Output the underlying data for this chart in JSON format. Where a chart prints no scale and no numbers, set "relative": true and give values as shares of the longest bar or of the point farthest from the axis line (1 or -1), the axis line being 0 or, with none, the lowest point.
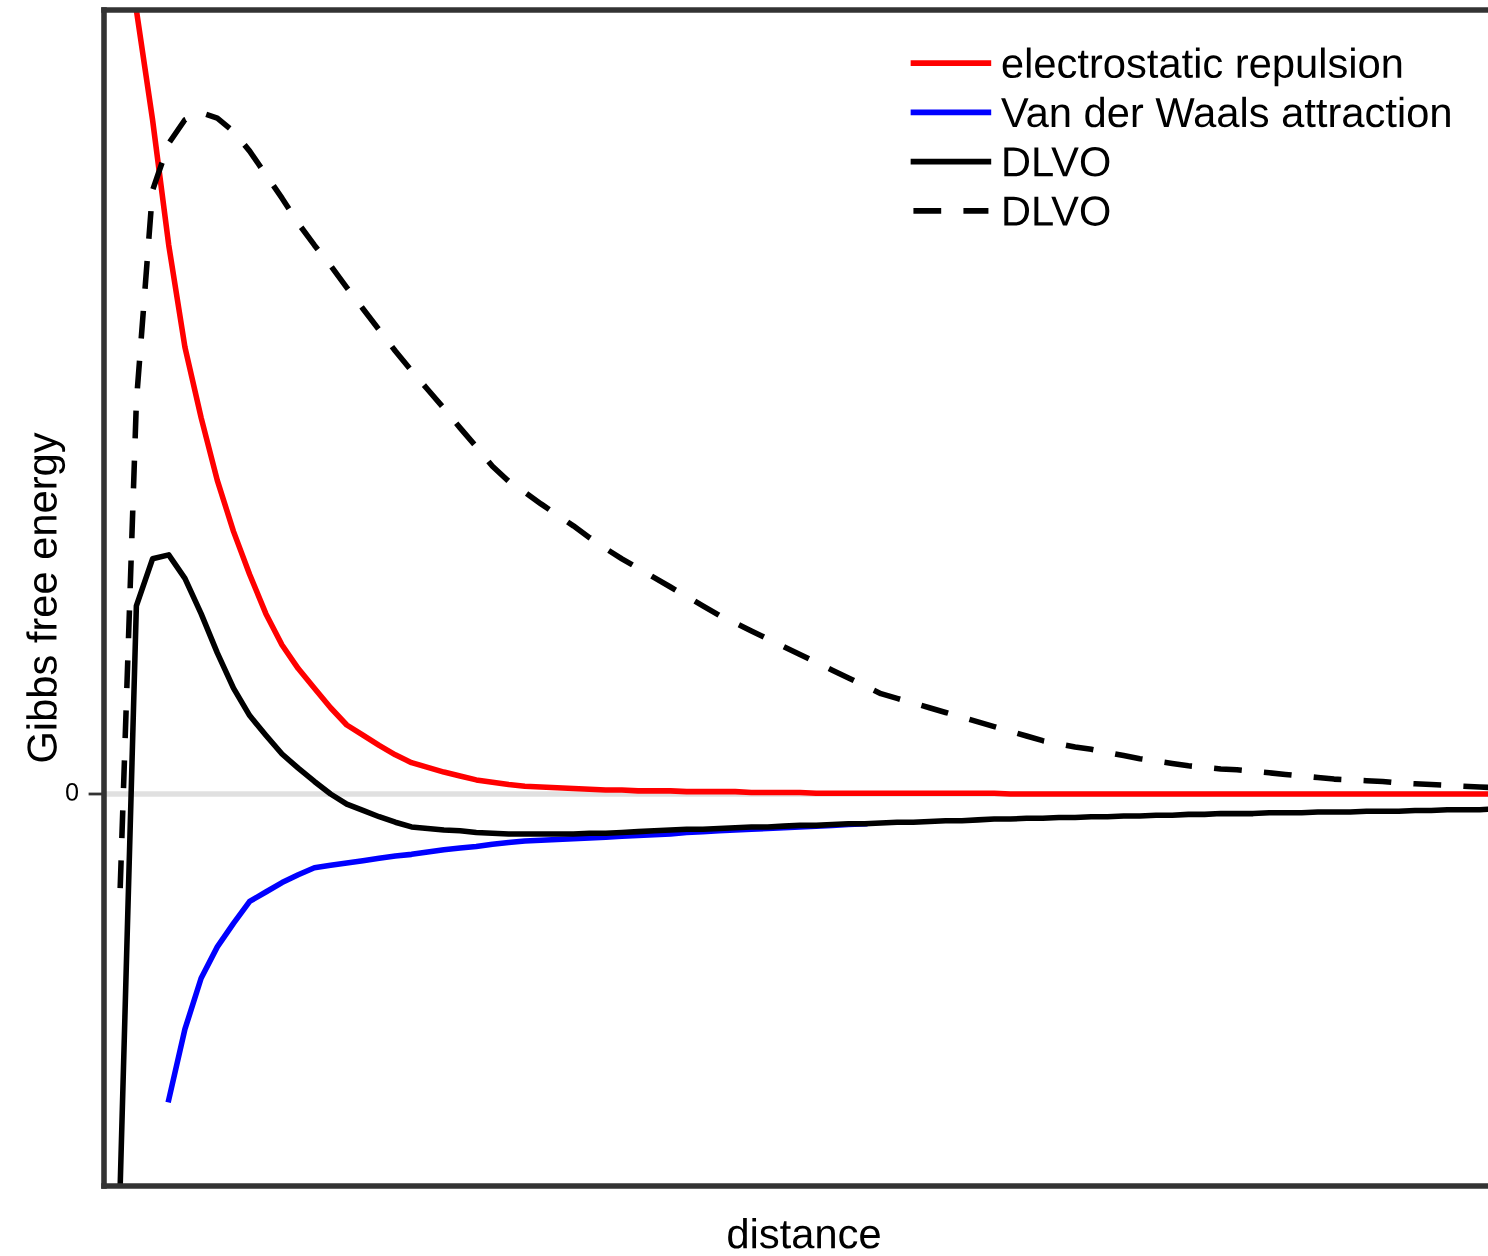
{
  "chart_data": {
    "type": "line",
    "xlabel": "distance",
    "ylabel": "Gibbs free energy",
    "relative": true,
    "legend": "top right",
    "categories": [
      null,
      null,
      null,
      null,
      null,
      null,
      null,
      null,
      null,
      null,
      null,
      null,
      null,
      null,
      null,
      null,
      null,
      null,
      null,
      null,
      null,
      null,
      null,
      null,
      null,
      null,
      null,
      null,
      null,
      null,
      null,
      null,
      null,
      null,
      null,
      null,
      null,
      null,
      null,
      null,
      null,
      null,
      null,
      null,
      null,
      null,
      null,
      null,
      null,
      null,
      null,
      null,
      null,
      null,
      null,
      null,
      null,
      null,
      null,
      null,
      null,
      null,
      null,
      null,
      null,
      null,
      null,
      null,
      null,
      null,
      null,
      null,
      null,
      null,
      null,
      null,
      null,
      null,
      null,
      null,
      null,
      null,
      null,
      null,
      null,
      null,
      null
    ],
    "ref_lines": [
      {
        "axis": "y",
        "value": 0,
        "label": "0",
        "color": "#e0e0e0"
      }
    ],
    "series": [
      {
        "name": "electrostatic repulsion",
        "color": "#ff0000",
        "line_style": "solid",
        "values": [
          null,
          null,
          1.0,
          0.86,
          0.7,
          0.57,
          0.48,
          0.4,
          0.335,
          0.28,
          0.23,
          0.19,
          0.16,
          0.135,
          0.11,
          0.088,
          0.075,
          0.062,
          0.05,
          0.04,
          0.034,
          0.028,
          0.023,
          0.018,
          0.015,
          0.012,
          0.01,
          0.009,
          0.008,
          0.007,
          0.006,
          0.005,
          0.005,
          0.004,
          0.004,
          0.004,
          0.003,
          0.003,
          0.003,
          0.003,
          0.002,
          0.002,
          0.002,
          0.002,
          0.001,
          0.001,
          0.001,
          0.001,
          0.001,
          0.001,
          0.001,
          0.001,
          0.001,
          0.001,
          0.001,
          0.001,
          0,
          0,
          0,
          0,
          0,
          0,
          0,
          0,
          0,
          0,
          0,
          0,
          0,
          0,
          0,
          0,
          0,
          0,
          0,
          0,
          0,
          0,
          0,
          0,
          0,
          0,
          0,
          0,
          0,
          0,
          0
        ]
      },
      {
        "name": "Van der Waals attraction",
        "color": "#0000ff",
        "line_style": "solid",
        "values": [
          null,
          null,
          null,
          null,
          -0.39,
          -0.3,
          -0.235,
          -0.195,
          -0.165,
          -0.137,
          -0.125,
          -0.113,
          -0.103,
          -0.094,
          -0.091,
          -0.088,
          -0.085,
          -0.082,
          -0.079,
          -0.077,
          -0.074,
          -0.071,
          -0.069,
          -0.067,
          -0.064,
          -0.062,
          -0.06,
          -0.059,
          -0.058,
          -0.057,
          -0.056,
          -0.055,
          -0.054,
          -0.053,
          -0.052,
          -0.051,
          -0.049,
          -0.048,
          -0.047,
          -0.046,
          -0.045,
          -0.044,
          -0.043,
          -0.042,
          -0.041,
          -0.04,
          -0.039,
          -0.038,
          null,
          null,
          null,
          null,
          null,
          null,
          null,
          null,
          null,
          null,
          null,
          null,
          null,
          null,
          null,
          null,
          null,
          null,
          null,
          null,
          null,
          null,
          null,
          null,
          null,
          null,
          null,
          null,
          null,
          null,
          null,
          null,
          null,
          null,
          null,
          null,
          null,
          null,
          null
        ]
      },
      {
        "name": "DLVO",
        "color": "#000000",
        "line_style": "solid",
        "values": [
          null,
          -0.5,
          0.24,
          0.3,
          0.305,
          0.275,
          0.23,
          0.18,
          0.135,
          0.1,
          0.075,
          0.051,
          0.033,
          0.016,
          0.0,
          -0.013,
          -0.021,
          -0.029,
          -0.036,
          -0.042,
          -0.044,
          -0.046,
          -0.047,
          -0.049,
          -0.05,
          -0.051,
          -0.051,
          -0.051,
          -0.051,
          -0.051,
          -0.05,
          -0.05,
          -0.049,
          -0.048,
          -0.047,
          -0.046,
          -0.045,
          -0.045,
          -0.044,
          -0.043,
          -0.042,
          -0.042,
          -0.041,
          -0.04,
          -0.04,
          -0.039,
          -0.038,
          -0.038,
          -0.037,
          -0.036,
          -0.036,
          -0.035,
          -0.034,
          -0.034,
          -0.033,
          -0.032,
          -0.032,
          -0.031,
          -0.031,
          -0.03,
          -0.03,
          -0.029,
          -0.029,
          -0.028,
          -0.028,
          -0.027,
          -0.027,
          -0.026,
          -0.026,
          -0.025,
          -0.025,
          -0.025,
          -0.024,
          -0.024,
          -0.024,
          -0.023,
          -0.023,
          -0.023,
          -0.022,
          -0.022,
          -0.022,
          -0.021,
          -0.021,
          -0.02,
          -0.02,
          -0.02,
          -0.019
        ]
      },
      {
        "name": "DLVO",
        "color": "#000000",
        "line_style": "dashed",
        "values": [
          null,
          -0.12,
          0.5,
          0.77,
          0.83,
          0.86,
          0.869,
          0.862,
          0.845,
          0.82,
          0.79,
          0.76,
          0.728,
          0.7,
          0.674,
          0.646,
          0.619,
          0.592,
          0.565,
          0.54,
          0.516,
          0.492,
          0.467,
          0.443,
          0.418,
          0.399,
          0.385,
          0.37,
          0.356,
          0.342,
          0.327,
          0.313,
          0.3,
          0.288,
          0.276,
          0.264,
          0.252,
          0.24,
          0.228,
          0.218,
          0.208,
          0.198,
          0.188,
          0.178,
          0.168,
          0.158,
          0.148,
          0.138,
          0.128,
          0.122,
          0.116,
          0.11,
          0.104,
          0.098,
          0.092,
          0.086,
          0.08,
          0.074,
          0.068,
          0.064,
          0.06,
          0.057,
          0.053,
          0.049,
          0.045,
          0.042,
          0.039,
          0.036,
          0.034,
          0.032,
          0.031,
          0.029,
          0.027,
          0.025,
          0.023,
          0.021,
          0.019,
          0.018,
          0.017,
          0.016,
          0.014,
          0.013,
          0.012,
          0.011,
          0.01,
          0.009,
          0.008
        ]
      }
    ]
  }
}
